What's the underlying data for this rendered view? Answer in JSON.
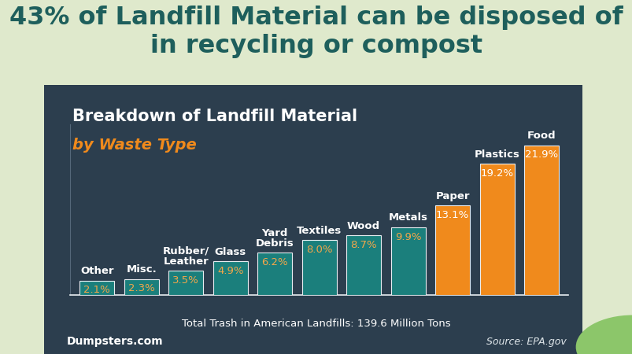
{
  "chart_data": {
    "type": "bar",
    "title": "43% of Landfill Material can be disposed of in recycling or compost",
    "subtitle": "Breakdown of Landfill Material",
    "annotations": [
      "by Waste Type",
      "Total Trash in American Landfills: 139.6 Million Tons",
      "Dumpsters.com",
      "Source: EPA.gov"
    ],
    "categories": [
      "Other",
      "Misc.",
      "Rubber/\nLeather",
      "Glass",
      "Yard\nDebris",
      "Textiles",
      "Wood",
      "Metals",
      "Paper",
      "Plastics",
      "Food"
    ],
    "values": [
      2.1,
      2.3,
      3.5,
      4.9,
      6.2,
      8.0,
      8.7,
      9.9,
      13.1,
      19.2,
      21.9
    ],
    "value_labels": [
      "2.1%",
      "2.3%",
      "3.5%",
      "4.9%",
      "6.2%",
      "8.0%",
      "8.7%",
      "9.9%",
      "13.1%",
      "19.2%",
      "21.9%"
    ],
    "colors": [
      "#1b7f7c",
      "#1b7f7c",
      "#1b7f7c",
      "#1b7f7c",
      "#1b7f7c",
      "#1b7f7c",
      "#1b7f7c",
      "#1b7f7c",
      "#f08a1c",
      "#f08a1c",
      "#f08a1c"
    ],
    "ylim": [
      0,
      25
    ],
    "data_labels": true,
    "tick_labels": false
  }
}
